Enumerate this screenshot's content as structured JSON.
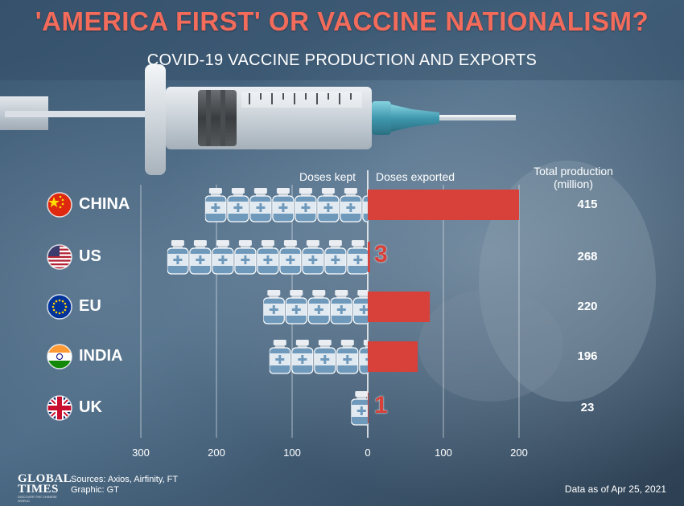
{
  "title": "'AMERICA FIRST' OR VACCINE NATIONALISM?",
  "subtitle": "COVID-19 VACCINE PRODUCTION AND EXPORTS",
  "headers": {
    "kept": "Doses kept",
    "exported": "Doses exported",
    "total_line1": "Total production",
    "total_line2": "(million)"
  },
  "chart_data": {
    "type": "bar",
    "categories": [
      "CHINA",
      "US",
      "EU",
      "INDIA",
      "UK"
    ],
    "series": [
      {
        "name": "Doses kept",
        "values": [
          215,
          265,
          138,
          130,
          22
        ]
      },
      {
        "name": "Doses exported",
        "values": [
          200,
          3,
          82,
          66,
          1
        ]
      }
    ],
    "total_production": [
      415,
      268,
      220,
      196,
      23
    ],
    "axis_ticks_kept": [
      300,
      200,
      100,
      0
    ],
    "axis_ticks_exported": [
      100,
      200
    ],
    "exported_labels": [
      "",
      "3",
      "",
      "",
      "1"
    ],
    "unit": "million",
    "grid": true
  },
  "flags": [
    "china-flag-icon",
    "us-flag-icon",
    "eu-flag-icon",
    "india-flag-icon",
    "uk-flag-icon"
  ],
  "colors": {
    "title": "#f26b5b",
    "bar": "#d8403a",
    "bottle_body": "#6f99bb",
    "bottle_cap": "#eaeef2"
  },
  "footer": {
    "logo_line1": "GLOBAL",
    "logo_line2": "TIMES",
    "logo_tagline": "DISCOVER THE CHINESE WORLD",
    "sources": "Sources: Axios, Airfinity, FT",
    "graphic": "Graphic: GT",
    "date": "Data as of Apr 25, 2021"
  }
}
